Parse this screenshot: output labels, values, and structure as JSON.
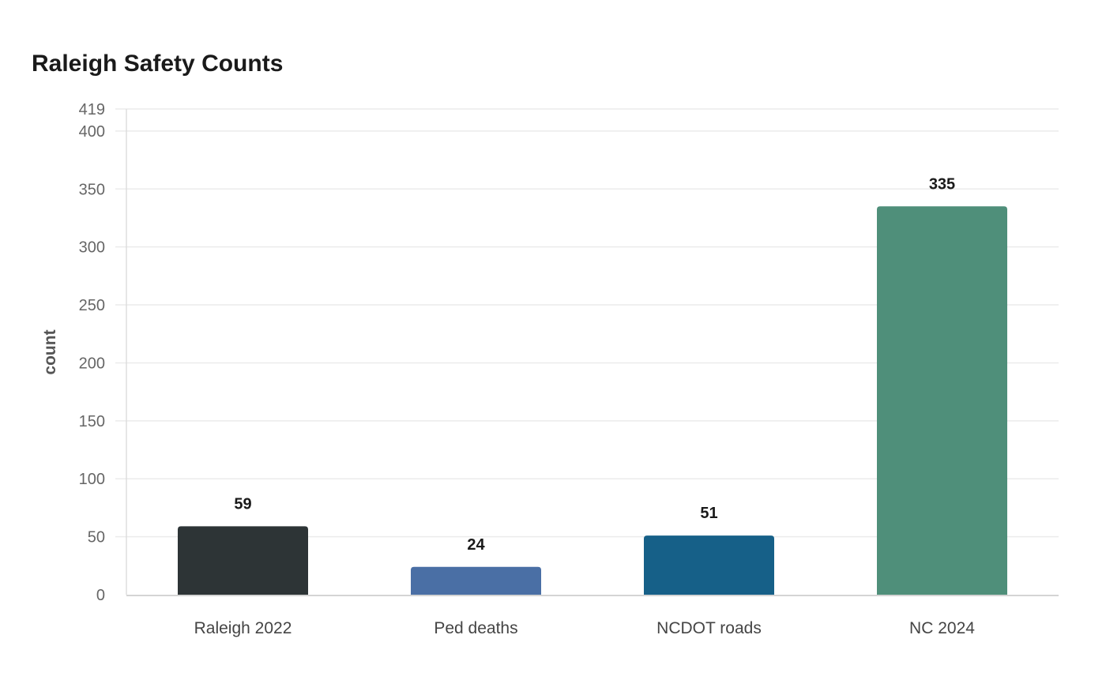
{
  "chart_data": {
    "type": "bar",
    "title": "Raleigh Safety Counts",
    "xlabel": "",
    "ylabel": "count",
    "categories": [
      "Raleigh 2022",
      "Ped deaths",
      "NCDOT roads",
      "NC 2024"
    ],
    "values": [
      59,
      24,
      51,
      335
    ],
    "colors": [
      "#2d3436",
      "#4a6fa5",
      "#166088",
      "#4f8f7a"
    ],
    "ylim": [
      0,
      419
    ],
    "yticks": [
      0,
      50,
      100,
      150,
      200,
      250,
      300,
      350,
      400,
      419
    ],
    "grid": true,
    "data_labels": true
  }
}
